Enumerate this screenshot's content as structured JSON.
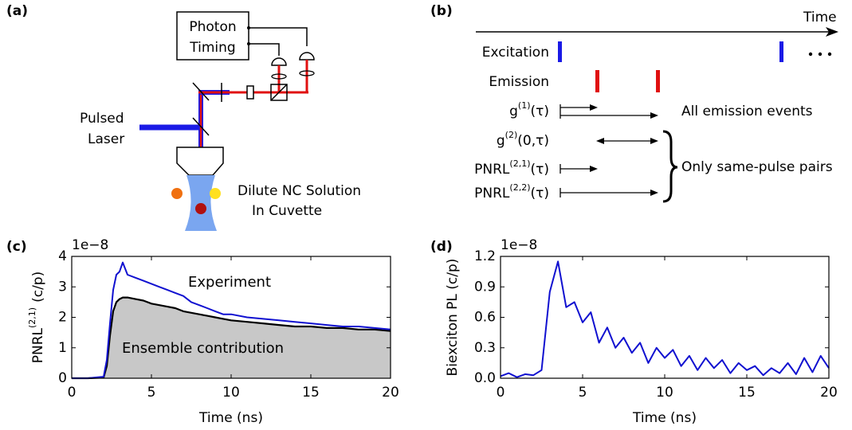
{
  "panel_labels": [
    "(a)",
    "(b)",
    "(c)",
    "(d)"
  ],
  "setup": {
    "photon_timing": [
      "Photon",
      "Timing"
    ],
    "laser": [
      "Pulsed",
      "Laser"
    ],
    "sample": [
      "Dilute NC Solution",
      "In Cuvette"
    ]
  },
  "timing": {
    "axis_label": "Time",
    "excitation": "Excitation",
    "emission": "Emission",
    "rows": [
      {
        "base": "g",
        "sup": "(1)",
        "arg": "(τ)"
      },
      {
        "base": "g",
        "sup": "(2)",
        "arg": "(0,τ)"
      },
      {
        "base": "PNRL",
        "sup": "(2,1)",
        "arg": "(τ)"
      },
      {
        "base": "PNRL",
        "sup": "(2,2)",
        "arg": "(τ)"
      }
    ],
    "all_note": "All emission events",
    "pair_note": "Only same-pulse pairs"
  },
  "chart_data": [
    {
      "type": "line",
      "x_label": "Time (ns)",
      "y_label": {
        "base": "PNRL",
        "sup": "(2,1)",
        "unit": "(c/p)"
      },
      "y_offset_label": "1e−8",
      "xlim": [
        0,
        20
      ],
      "ylim": [
        0,
        4
      ],
      "xticks": [
        0,
        5,
        10,
        15,
        20
      ],
      "yticks": [
        0,
        1,
        2,
        3,
        4
      ],
      "x": [
        0,
        1,
        2,
        2.2,
        2.4,
        2.6,
        2.8,
        3,
        3.2,
        3.5,
        4,
        4.5,
        5,
        5.5,
        6,
        6.5,
        7,
        7.5,
        8,
        8.5,
        9,
        9.5,
        10,
        11,
        12,
        13,
        14,
        15,
        16,
        17,
        18,
        19,
        20
      ],
      "series": [
        {
          "name": "Ensemble contribution",
          "color": "#000000",
          "fill": "#c8c8c8",
          "values": [
            0,
            0,
            0.02,
            0.4,
            1.4,
            2.2,
            2.5,
            2.6,
            2.65,
            2.65,
            2.6,
            2.55,
            2.45,
            2.4,
            2.35,
            2.3,
            2.2,
            2.15,
            2.1,
            2.05,
            2.0,
            1.95,
            1.9,
            1.85,
            1.8,
            1.75,
            1.7,
            1.7,
            1.65,
            1.65,
            1.6,
            1.6,
            1.55
          ]
        },
        {
          "name": "Experiment",
          "color": "#1010d0",
          "values": [
            0,
            0,
            0.05,
            0.6,
            1.8,
            2.9,
            3.4,
            3.5,
            3.8,
            3.4,
            3.3,
            3.2,
            3.1,
            3.0,
            2.9,
            2.8,
            2.7,
            2.5,
            2.4,
            2.3,
            2.2,
            2.1,
            2.1,
            2.0,
            1.95,
            1.9,
            1.85,
            1.8,
            1.75,
            1.7,
            1.7,
            1.65,
            1.6
          ]
        }
      ]
    },
    {
      "type": "line",
      "x_label": "Time (ns)",
      "y_label": "Biexciton PL (c/p)",
      "y_offset_label": "1e−8",
      "xlim": [
        0,
        20
      ],
      "ylim": [
        0,
        1.2
      ],
      "xticks": [
        0,
        5,
        10,
        15,
        20
      ],
      "yticks": [
        {
          "value": 0,
          "label": "0.0"
        },
        0.3,
        0.6,
        0.9,
        1.2
      ],
      "color": "#1010d0",
      "x": [
        0,
        0.5,
        1,
        1.5,
        2,
        2.5,
        3,
        3.5,
        4,
        4.5,
        5,
        5.5,
        6,
        6.5,
        7,
        7.5,
        8,
        8.5,
        9,
        9.5,
        10,
        10.5,
        11,
        11.5,
        12,
        12.5,
        13,
        13.5,
        14,
        14.5,
        15,
        15.5,
        16,
        16.5,
        17,
        17.5,
        18,
        18.5,
        19,
        19.5,
        20
      ],
      "values": [
        0.02,
        0.05,
        0.01,
        0.04,
        0.03,
        0.08,
        0.85,
        1.15,
        0.7,
        0.75,
        0.55,
        0.65,
        0.35,
        0.5,
        0.3,
        0.4,
        0.25,
        0.35,
        0.15,
        0.3,
        0.2,
        0.28,
        0.12,
        0.22,
        0.08,
        0.2,
        0.1,
        0.18,
        0.05,
        0.15,
        0.08,
        0.12,
        0.03,
        0.1,
        0.05,
        0.15,
        0.04,
        0.2,
        0.06,
        0.22,
        0.1
      ]
    }
  ]
}
